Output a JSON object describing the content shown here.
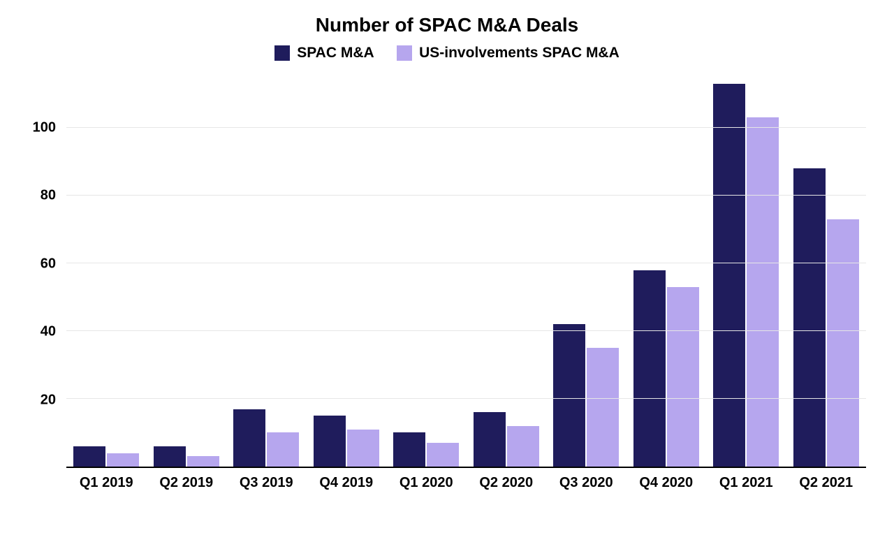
{
  "chart": {
    "type": "bar",
    "title": "Number of SPAC M&A Deals",
    "title_fontsize": 28,
    "title_fontweight": 800,
    "title_color": "#000000",
    "background_color": "#ffffff",
    "grid_color": "#e6e6e6",
    "axis_color": "#000000",
    "label_fontsize": 20,
    "label_fontweight": 700,
    "ylim": [
      0,
      115
    ],
    "yticks": [
      20,
      40,
      60,
      80,
      100
    ],
    "bar_width_ratio": 0.4,
    "categories": [
      "Q1 2019",
      "Q2 2019",
      "Q3 2019",
      "Q4 2019",
      "Q1 2020",
      "Q2 2020",
      "Q3 2020",
      "Q4 2020",
      "Q1 2021",
      "Q2 2021"
    ],
    "series": [
      {
        "name": "SPAC M&A",
        "color": "#1f1c5c",
        "values": [
          6,
          6,
          17,
          15,
          10,
          16,
          42,
          58,
          113,
          88
        ]
      },
      {
        "name": "US-involvements SPAC M&A",
        "color": "#b6a6ee",
        "values": [
          4,
          3,
          10,
          11,
          7,
          12,
          35,
          53,
          103,
          73
        ]
      }
    ],
    "legend": {
      "fontsize": 21,
      "fontweight": 600,
      "swatch_size": 22
    }
  }
}
